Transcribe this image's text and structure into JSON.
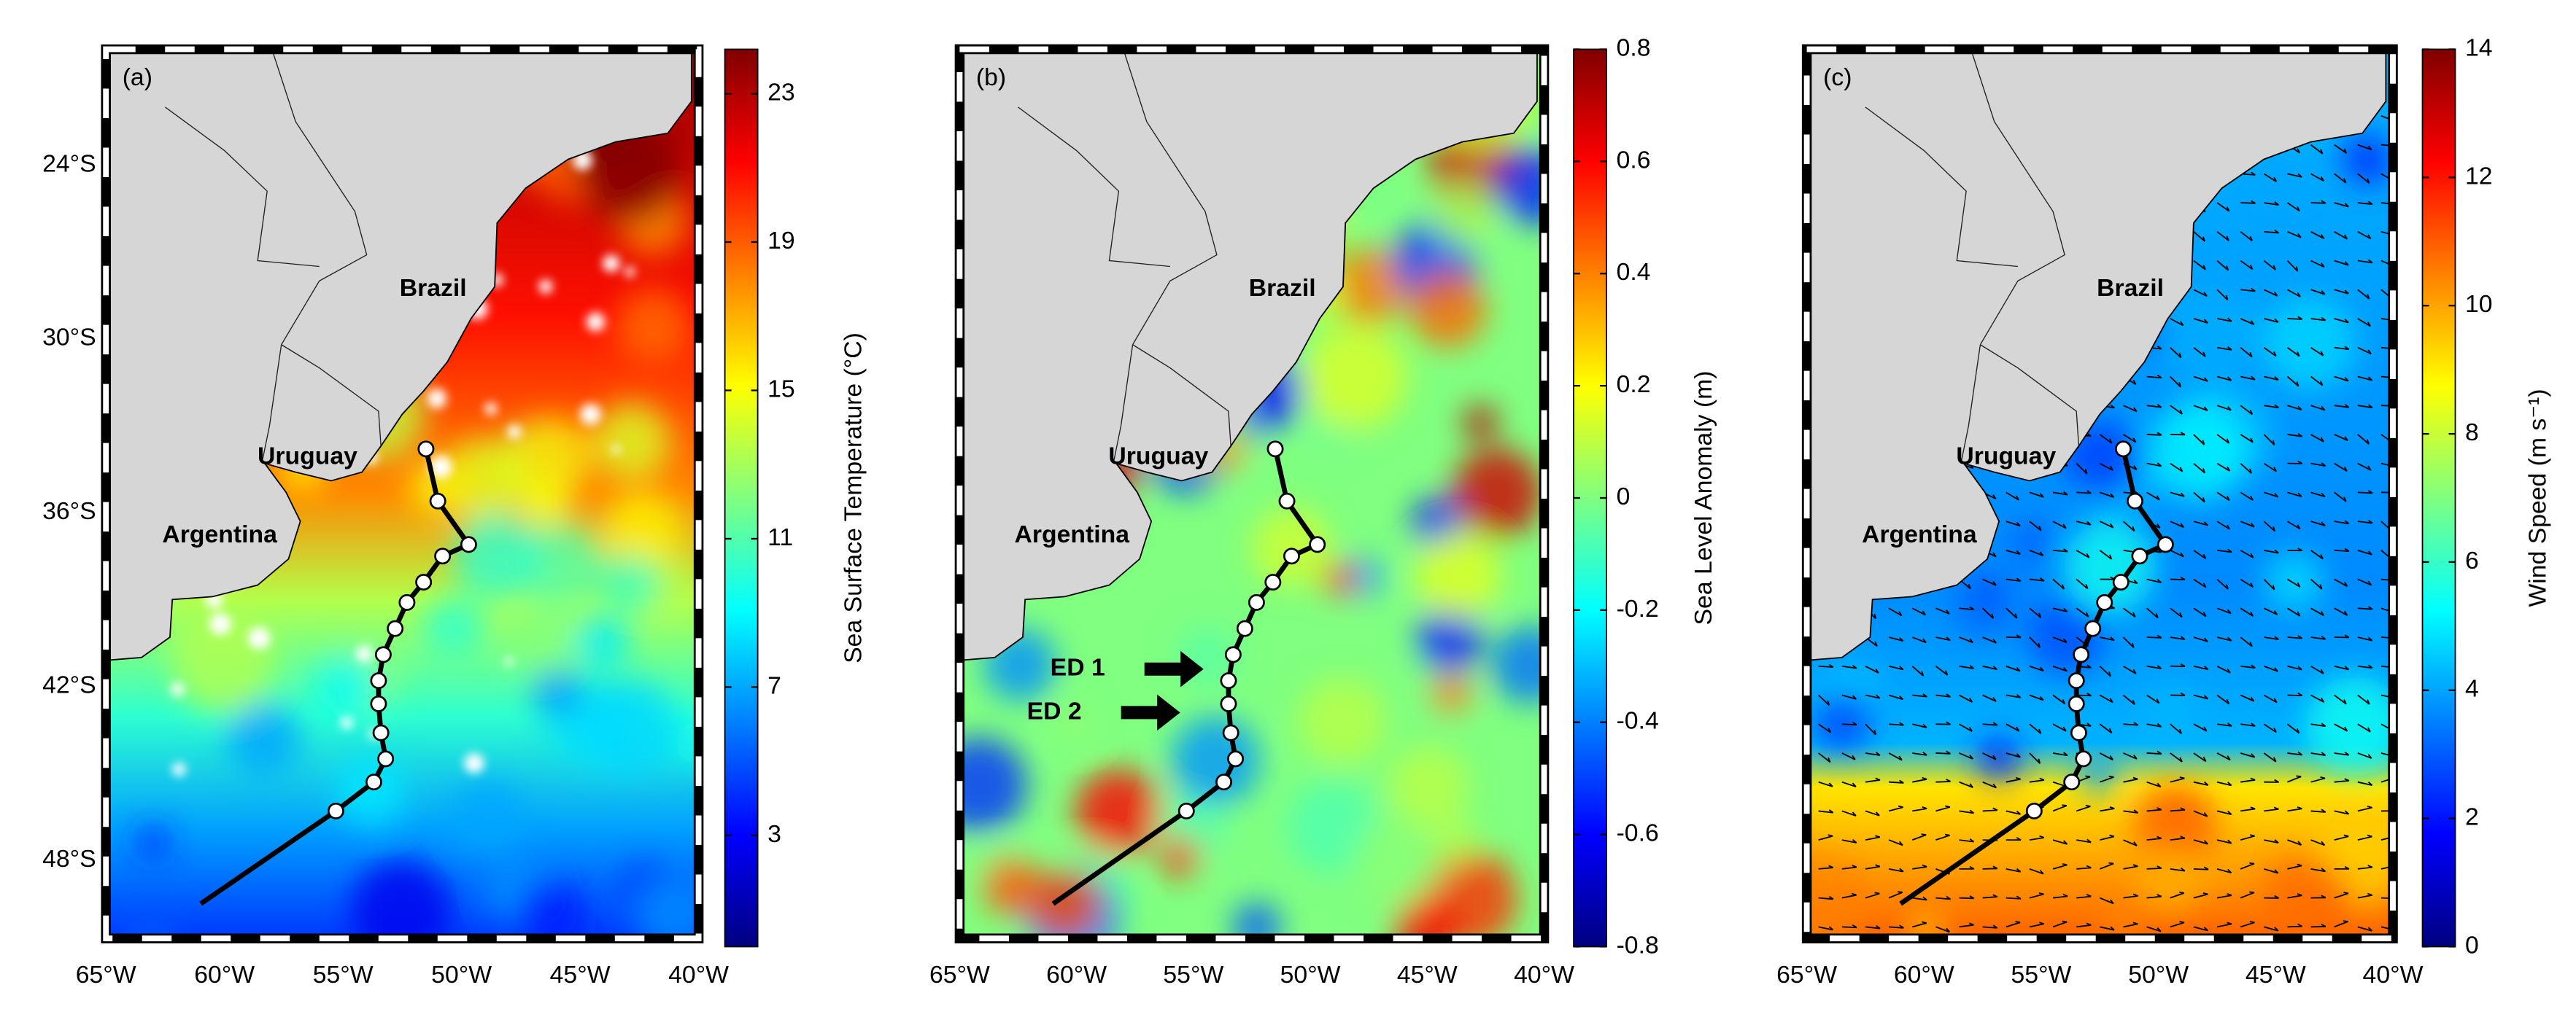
{
  "figure": {
    "lonlim": [
      -65,
      -40
    ],
    "latlim": [
      -50.7,
      -20
    ],
    "lon_ticks": [
      {
        "value": -65,
        "label": "65°W"
      },
      {
        "value": -60,
        "label": "60°W"
      },
      {
        "value": -55,
        "label": "55°W"
      },
      {
        "value": -50,
        "label": "50°W"
      },
      {
        "value": -45,
        "label": "45°W"
      },
      {
        "value": -40,
        "label": "40°W"
      }
    ],
    "lat_ticks": [
      {
        "value": -24,
        "label": "24°S"
      },
      {
        "value": -30,
        "label": "30°S"
      },
      {
        "value": -36,
        "label": "36°S"
      },
      {
        "value": -42,
        "label": "42°S"
      },
      {
        "value": -48,
        "label": "48°S"
      }
    ],
    "track": {
      "lon": [
        -51.5,
        -51.0,
        -49.7,
        -50.8,
        -51.6,
        -52.3,
        -52.8,
        -53.3,
        -53.5,
        -53.5,
        -53.4,
        -53.2,
        -53.7,
        -55.3,
        -61.0
      ],
      "lat": [
        -33.8,
        -35.6,
        -37.1,
        -37.5,
        -38.4,
        -39.1,
        -40.0,
        -40.9,
        -41.8,
        -42.6,
        -43.6,
        -44.5,
        -45.3,
        -46.3,
        -49.5
      ],
      "stations": [
        0,
        1,
        2,
        3,
        4,
        5,
        6,
        7,
        8,
        9,
        10,
        11,
        12,
        13
      ]
    },
    "panels": [
      {
        "label": "(a)",
        "places": [
          "Brazil",
          "Uruguay",
          "Argentina"
        ],
        "annotations": [],
        "colorbar": {
          "label": "Sea Surface Temperature (°C)",
          "lim": [
            0,
            24.2
          ],
          "ticks": [
            3,
            7,
            11,
            15,
            19,
            23
          ]
        }
      },
      {
        "label": "(b)",
        "places": [
          "Brazil",
          "Uruguay",
          "Argentina"
        ],
        "annotations": [
          "ED 1",
          "ED 2"
        ],
        "colorbar": {
          "label": "Sea Level Anomaly (m)",
          "lim": [
            -0.8,
            0.8
          ],
          "ticks": [
            -0.8,
            -0.6,
            -0.4,
            -0.2,
            0,
            0.2,
            0.4,
            0.6,
            0.8
          ]
        }
      },
      {
        "label": "(c)",
        "places": [
          "Brazil",
          "Uruguay",
          "Argentina"
        ],
        "annotations": [],
        "colorbar": {
          "label": "Wind Speed (m s⁻¹)",
          "lim": [
            0,
            14
          ],
          "ticks": [
            0,
            2,
            4,
            6,
            8,
            10,
            12,
            14
          ]
        }
      }
    ]
  }
}
